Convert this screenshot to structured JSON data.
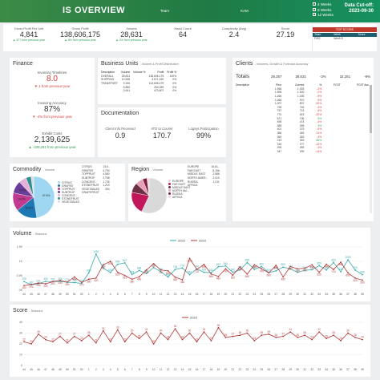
{
  "header": {
    "title": "IS OVERVIEW",
    "team_label": "Team",
    "team_value": "KAM",
    "weeks": [
      "4 Weeks",
      "8 Weeks",
      "12 Weeks"
    ],
    "cutoff_label": "Data Cut-off:",
    "cutoff_date": "2023-09-30",
    "topscore_label": "TOP SCORE",
    "topscore_cols": [
      "Team",
      "Week",
      "Score"
    ],
    "topscore_row": [
      "FIRE",
      "Week 8",
      ""
    ]
  },
  "kpis": [
    {
      "label": "Gross Profit Per Unit",
      "value": "4,841",
      "delta": "▲ 377 from previous year",
      "dir": "up"
    },
    {
      "label": "Gross Profit",
      "value": "138,606,175",
      "delta": "▲ 6% from previous year",
      "dir": "up"
    },
    {
      "label": "Volume",
      "value": "28,631",
      "delta": "▲ 2% from previous year",
      "dir": "up"
    },
    {
      "label": "Head Count",
      "value": "64",
      "delta": "",
      "dir": "up"
    },
    {
      "label": "Complexity (Avg)",
      "value": "2.4",
      "delta": "",
      "dir": "up"
    },
    {
      "label": "Score",
      "value": "27.19",
      "delta": "",
      "dir": "up"
    }
  ],
  "finance": {
    "title": "Finance",
    "items": [
      {
        "label": "Invoicing Timelines",
        "value": "8.0",
        "delta": "▼ 1 from previous year",
        "dir": "dn",
        "color": "#d63b3b"
      },
      {
        "label": "Invoicing Accuracy",
        "value": "87%",
        "delta": "▼ -4% from previous year",
        "dir": "dn",
        "color": "#333"
      },
      {
        "label": "Exhibit Costs",
        "value": "2,139,625",
        "delta": "▲ -339,291 from previous year",
        "dir": "up",
        "color": "#333"
      }
    ]
  },
  "business_units": {
    "title": "Business Units",
    "subtitle": "- Volume & Profit Distribution",
    "cols": [
      "Description",
      "Volume",
      "Volume %",
      "Profit",
      "Profit %"
    ],
    "rows": [
      [
        "OVERALL",
        "28,631",
        "",
        "138,606,175",
        "100%"
      ],
      [
        "SHIPPING",
        "10,948",
        "",
        "3,571,180",
        "0%"
      ],
      [
        "TRANSPORT",
        "9,190",
        "",
        "113,698,479",
        "0%"
      ],
      [
        "",
        "5,850",
        "",
        "250,059",
        "0%"
      ],
      [
        "",
        "2,641",
        "",
        "470,807",
        "0%"
      ]
    ]
  },
  "documentation": {
    "title": "Documentation",
    "items": [
      {
        "label": "Client Info Received",
        "value": "0.9"
      },
      {
        "label": "ATD to Courier",
        "value": "170.7"
      },
      {
        "label": "Logsys Participation",
        "value": "99%"
      }
    ]
  },
  "clients": {
    "title": "Clients",
    "subtitle": "- Volumes, Growth & Forecast Accuracy",
    "totals_label": "Totals",
    "totals": [
      "29,257",
      "28,631",
      "-2%",
      "32,251",
      "-9%"
    ],
    "cols": [
      "Description",
      "Prior",
      "Current",
      "%",
      "FCST",
      "FCST Acc"
    ],
    "rows": [
      [
        "",
        "1,956",
        "1,925",
        "-2%",
        "",
        ""
      ],
      [
        "",
        "1,556",
        "1,520",
        "-2%",
        "",
        ""
      ],
      [
        "",
        "1,266",
        "1,156",
        "-9%",
        "",
        ""
      ],
      [
        "",
        "1,066",
        "970",
        "-9%",
        "",
        ""
      ],
      [
        "",
        "1,007",
        "807",
        "-20%",
        "",
        ""
      ],
      [
        "",
        "795",
        "763",
        "-4%",
        "",
        ""
      ],
      [
        "",
        "757",
        "715",
        "-6%",
        "",
        ""
      ],
      [
        "",
        "770",
        "619",
        "-20%",
        "",
        ""
      ],
      [
        "",
        "671",
        "706",
        "5%",
        "",
        ""
      ],
      [
        "",
        "495",
        "474",
        "-4%",
        "",
        ""
      ],
      [
        "",
        "385",
        "395",
        "3%",
        "",
        ""
      ],
      [
        "",
        "401",
        "379",
        "-5%",
        "",
        ""
      ],
      [
        "",
        "386",
        "345",
        "-11%",
        "",
        ""
      ],
      [
        "",
        "360",
        "349",
        "-3%",
        "",
        ""
      ],
      [
        "",
        "213",
        "353",
        "66%",
        "",
        ""
      ],
      [
        "",
        "316",
        "277",
        "-12%",
        "",
        ""
      ],
      [
        "",
        "295",
        "283",
        "-4%",
        "",
        ""
      ],
      [
        "",
        "347",
        "299",
        "-14%",
        "",
        ""
      ]
    ]
  },
  "commodity": {
    "title": "Commodity",
    "subtitle": "- Volume",
    "legend": [
      "CITRUS",
      "GRAPES",
      "TOPFRUIT",
      "SUBTROP",
      "CONCENT...",
      "STONEFRUIT",
      "VEGETABLES"
    ],
    "slices": [
      {
        "label": "CITRUS",
        "value": 47.6,
        "color": "#9fd7f2"
      },
      {
        "label": "GRAPES",
        "value": 16.6,
        "color": "#1e78b4"
      },
      {
        "label": "TOPFRUIT",
        "value": 14.2,
        "color": "#c03a8f"
      },
      {
        "label": "SUBTROP",
        "value": 9.6,
        "color": "#6a3d9a"
      },
      {
        "label": "CONCENT",
        "value": 6,
        "color": "#e6b0d8"
      },
      {
        "label": "STONEFRUIT",
        "value": 4,
        "color": "#2d8f8f"
      },
      {
        "label": "VEGETABLES",
        "value": 2,
        "color": "#ddd"
      }
    ],
    "pie_labels": [
      "47.6%",
      "16.6%",
      "14.2%",
      "9.6%"
    ],
    "table": [
      [
        "CITRUS",
        "13,6.."
      ],
      [
        "GRAPES",
        "4,754"
      ],
      [
        "TOPFRUIT",
        "4,060"
      ],
      [
        "SUBTROP",
        "2,758"
      ],
      [
        "CONCENT...",
        "1,726"
      ],
      [
        "STONEFRUIT",
        "1,219"
      ],
      [
        "VEGETABLES",
        "304"
      ],
      [
        "GRAPEFRUIT",
        "..."
      ]
    ]
  },
  "region": {
    "title": "Region",
    "subtitle": "- Volume",
    "legend": [
      "EUROPE",
      "FAR EAST",
      "MIDDLE EAST",
      "NORTH AM...",
      "RUSSIA",
      "AFRICA"
    ],
    "slices": [
      {
        "label": "EUROPE",
        "value": 57,
        "color": "#d9d9d9"
      },
      {
        "label": "FAR EAST",
        "value": 21,
        "color": "#c2185b"
      },
      {
        "label": "MIDDLE EAST",
        "value": 9,
        "color": "#6d2e46"
      },
      {
        "label": "NORTH AM",
        "value": 7,
        "color": "#e8a0b4"
      },
      {
        "label": "RUSSIA",
        "value": 4,
        "color": "#7a1f3d"
      },
      {
        "label": "AFRICA",
        "value": 2,
        "color": "#f5d0dc"
      }
    ],
    "table": [
      [
        "EUROPE",
        "16,61.."
      ],
      [
        "FAR EAST",
        "6,156"
      ],
      [
        "MIDDLE EAST",
        "2,586"
      ],
      [
        "NORTH AMER...",
        "2,010"
      ],
      [
        "RUSSIA",
        "1,011"
      ],
      [
        "AFRICA",
        "..."
      ]
    ]
  },
  "volume_chart": {
    "title": "Volume",
    "subtitle": "- Seasons",
    "legend": [
      {
        "name": "2022",
        "color": "#3aa8a8"
      },
      {
        "name": "2023",
        "color": "#b23a3a"
      }
    ],
    "yticks": [
      "1.5K",
      "1K",
      "0.5K",
      "0K"
    ]
  },
  "score_chart": {
    "title": "Score",
    "subtitle": "- Seasons",
    "legend": [
      {
        "name": "2023",
        "color": "#b23a3a"
      }
    ],
    "yticks": [
      "40",
      "30",
      "20",
      "10",
      "0"
    ]
  },
  "chart_data": [
    {
      "type": "line",
      "title": "Volume",
      "xlabel": "",
      "ylabel": "",
      "ylim": [
        0,
        1500
      ],
      "x": [
        "44",
        "45",
        "46",
        "47",
        "48",
        "49",
        "50",
        "51",
        "52",
        "1",
        "2",
        "3",
        "4",
        "5",
        "6",
        "7",
        "8",
        "9",
        "10",
        "11",
        "12",
        "13",
        "14",
        "15",
        "16",
        "17",
        "18",
        "19",
        "20",
        "21",
        "22",
        "23",
        "24",
        "25",
        "26",
        "27",
        "28",
        "29",
        "30",
        "31",
        "32",
        "33",
        "34",
        "35",
        "36",
        "37",
        "38",
        "39"
      ],
      "series": [
        {
          "name": "2022",
          "values": [
            299,
            187,
            231,
            305,
            291,
            308,
            276,
            265,
            233,
            600,
            1252,
            760,
            616,
            900,
            947,
            545,
            684,
            580,
            790,
            640,
            460,
            718,
            770,
            540,
            740,
            620,
            610,
            812,
            840,
            620,
            700,
            960,
            720,
            820,
            610,
            670,
            800,
            740,
            620,
            690,
            710,
            850,
            700,
            960,
            640,
            1050,
            700,
            540
          ]
        },
        {
          "name": "2023",
          "values": [
            160,
            200,
            250,
            220,
            300,
            340,
            280,
            460,
            270,
            380,
            420,
            880,
            1001,
            620,
            510,
            380,
            460,
            700,
            920,
            700,
            670,
            450,
            360,
            1100,
            720,
            890,
            560,
            480,
            740,
            520,
            810,
            560,
            880,
            740,
            600,
            860,
            460,
            820,
            740,
            760,
            880,
            620,
            900,
            720,
            968,
            600,
            420,
            350
          ]
        }
      ]
    },
    {
      "type": "line",
      "title": "Score",
      "xlabel": "",
      "ylabel": "",
      "ylim": [
        0,
        40
      ],
      "x": [
        "44",
        "45",
        "46",
        "47",
        "48",
        "49",
        "50",
        "51",
        "52",
        "1",
        "2",
        "3",
        "4",
        "5",
        "6",
        "7",
        "8",
        "9",
        "10",
        "11",
        "12",
        "13",
        "14",
        "15",
        "16",
        "17",
        "18",
        "19",
        "20",
        "21",
        "22",
        "23",
        "24",
        "25",
        "26",
        "27",
        "28",
        "29",
        "30",
        "31",
        "32",
        "33",
        "34",
        "35",
        "36",
        "37",
        "38",
        "39"
      ],
      "series": [
        {
          "name": "2023",
          "values": [
            22,
            20,
            29,
            24,
            22,
            27,
            21,
            27,
            23,
            28,
            21,
            32,
            22,
            33,
            22,
            30,
            25,
            31,
            20,
            30,
            24,
            34,
            24,
            30,
            22,
            31,
            23,
            35,
            26,
            27,
            28,
            30,
            23,
            28,
            29,
            26,
            27,
            31,
            26,
            28,
            24,
            31,
            25,
            28,
            23,
            30,
            26,
            24
          ]
        }
      ]
    }
  ]
}
